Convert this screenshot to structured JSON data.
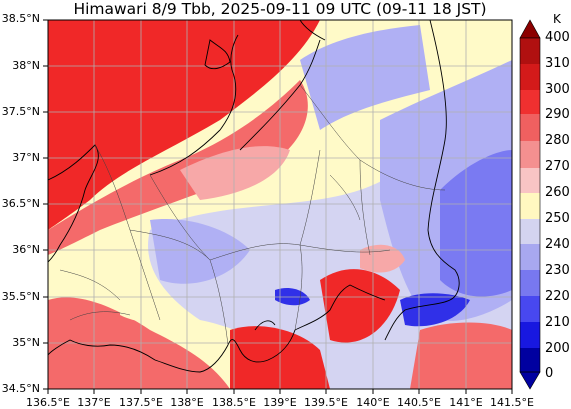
{
  "title": "Himawari 8/9 Tbb, 2025-09-11 09 UTC (09-11 18 JST)",
  "lat_ticks": [
    "38.5°N",
    "38°N",
    "37.5°N",
    "37°N",
    "36.5°N",
    "36°N",
    "35.5°N",
    "35°N",
    "34.5°N"
  ],
  "lon_ticks": [
    "136.5°E",
    "137°E",
    "137.5°E",
    "138°E",
    "138.5°E",
    "139°E",
    "139.5°E",
    "140°E",
    "140.5°E",
    "141°E",
    "141.5°E"
  ],
  "colorbar": {
    "unit": "K",
    "labels": [
      "400",
      "310",
      "300",
      "290",
      "280",
      "270",
      "260",
      "250",
      "240",
      "230",
      "220",
      "210",
      "200",
      "0"
    ],
    "colors": [
      "#8b0000",
      "#b01010",
      "#d41a1a",
      "#f03030",
      "#f06060",
      "#f49090",
      "#f8c4c4",
      "#fff8c0",
      "#d4d4f0",
      "#a8a8f0",
      "#7878f0",
      "#4848f0",
      "#1818e0",
      "#0000a0"
    ]
  },
  "palette": {
    "hot": "#f02828",
    "warm": "#f46a6a",
    "pink": "#f7a8a8",
    "lightpink": "#f8cccc",
    "cream": "#fffac8",
    "lavender": "#d4d4f2",
    "lightblue": "#b0b0f4",
    "blue": "#7a7af2",
    "deepblue": "#3030e8"
  }
}
